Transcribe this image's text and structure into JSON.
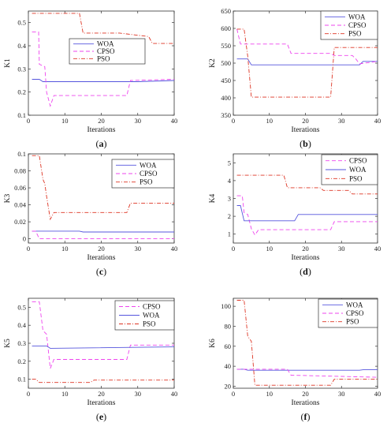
{
  "colors": {
    "WOA": "#5555dd",
    "CPSO": "#ee44ee",
    "PSO": "#dd3322"
  },
  "dash": {
    "WOA": "",
    "CPSO": "5,3",
    "PSO": "5,2,1,2"
  },
  "chart_data": [
    {
      "type": "line",
      "panel": "(a)",
      "sub_label_letter": "a",
      "xlabel": "Iterations",
      "ylabel": "K1",
      "xlim": [
        0,
        40
      ],
      "ylim": [
        0.1,
        0.55
      ],
      "xticks": [
        0,
        10,
        20,
        30,
        40
      ],
      "yticks": [
        0.1,
        0.2,
        0.3,
        0.4,
        0.5
      ],
      "legend_order": [
        "WOA",
        "CPSO",
        "PSO"
      ],
      "series": [
        {
          "name": "WOA",
          "x": [
            1,
            3,
            4,
            30,
            40
          ],
          "y": [
            0.255,
            0.255,
            0.245,
            0.245,
            0.25
          ]
        },
        {
          "name": "CPSO",
          "x": [
            1,
            2.8,
            3,
            4.5,
            5,
            6,
            7,
            27,
            28,
            40
          ],
          "y": [
            0.46,
            0.46,
            0.32,
            0.31,
            0.2,
            0.14,
            0.185,
            0.185,
            0.25,
            0.255
          ]
        },
        {
          "name": "PSO",
          "x": [
            1,
            14,
            15,
            25,
            33,
            34,
            40
          ],
          "y": [
            0.54,
            0.54,
            0.455,
            0.455,
            0.44,
            0.41,
            0.41
          ]
        }
      ]
    },
    {
      "type": "line",
      "panel": "(b)",
      "sub_label_letter": "b",
      "xlabel": "Iterations",
      "ylabel": "K2",
      "xlim": [
        0,
        40
      ],
      "ylim": [
        350,
        650
      ],
      "xticks": [
        0,
        10,
        20,
        30,
        40
      ],
      "yticks": [
        350,
        400,
        450,
        500,
        550,
        600,
        650
      ],
      "legend_order": [
        "WOA",
        "CPSO",
        "PSO"
      ],
      "series": [
        {
          "name": "WOA",
          "x": [
            1,
            4,
            5,
            35,
            36,
            40
          ],
          "y": [
            512,
            512,
            495,
            495,
            505,
            505
          ]
        },
        {
          "name": "CPSO",
          "x": [
            1,
            2,
            15,
            16,
            27,
            28,
            33,
            34,
            35,
            40
          ],
          "y": [
            598,
            555,
            555,
            528,
            528,
            522,
            522,
            512,
            498,
            505
          ]
        },
        {
          "name": "PSO",
          "x": [
            1,
            3,
            4,
            5,
            27,
            28,
            40
          ],
          "y": [
            598,
            598,
            520,
            402,
            402,
            545,
            545
          ]
        }
      ]
    },
    {
      "type": "line",
      "panel": "(c)",
      "sub_label_letter": "c",
      "xlabel": "Iterations",
      "ylabel": "K3",
      "xlim": [
        0,
        40
      ],
      "ylim": [
        -0.005,
        0.1
      ],
      "xticks": [
        0,
        10,
        20,
        30,
        40
      ],
      "yticks": [
        0,
        0.02,
        0.04,
        0.06,
        0.08,
        0.1
      ],
      "legend_order": [
        "WOA",
        "CPSO",
        "PSO"
      ],
      "series": [
        {
          "name": "WOA",
          "x": [
            1,
            14,
            15,
            40
          ],
          "y": [
            0.009,
            0.009,
            0.008,
            0.008
          ]
        },
        {
          "name": "CPSO",
          "x": [
            1,
            2,
            3,
            40
          ],
          "y": [
            0.009,
            0.009,
            0,
            0
          ]
        },
        {
          "name": "PSO",
          "x": [
            1,
            3,
            4,
            4.5,
            5,
            6,
            7,
            27,
            28,
            40
          ],
          "y": [
            0.098,
            0.098,
            0.07,
            0.065,
            0.05,
            0.023,
            0.031,
            0.031,
            0.042,
            0.042
          ]
        }
      ]
    },
    {
      "type": "line",
      "panel": "(d)",
      "sub_label_letter": "d",
      "xlabel": "Iterations",
      "ylabel": "K4",
      "xlim": [
        0,
        40
      ],
      "ylim": [
        0.5,
        5.5
      ],
      "xticks": [
        0,
        10,
        20,
        30,
        40
      ],
      "yticks": [
        1,
        2,
        3,
        4,
        5
      ],
      "legend_order": [
        "CPSO",
        "WOA",
        "PSO"
      ],
      "series": [
        {
          "name": "CPSO",
          "x": [
            1,
            2.5,
            3,
            4,
            5,
            6,
            7,
            27,
            28,
            40
          ],
          "y": [
            3.15,
            3.15,
            2.2,
            2.1,
            1.3,
            0.95,
            1.25,
            1.25,
            1.7,
            1.7
          ]
        },
        {
          "name": "WOA",
          "x": [
            1,
            2,
            3,
            17,
            18,
            40
          ],
          "y": [
            2.6,
            2.6,
            1.75,
            1.75,
            2.1,
            2.1
          ]
        },
        {
          "name": "PSO",
          "x": [
            1,
            14,
            15,
            24,
            25,
            32,
            33,
            40
          ],
          "y": [
            4.3,
            4.3,
            3.6,
            3.6,
            3.45,
            3.45,
            3.25,
            3.25
          ]
        }
      ]
    },
    {
      "type": "line",
      "panel": "(e)",
      "sub_label_letter": "e",
      "xlabel": "Iterations",
      "ylabel": "K5",
      "xlim": [
        0,
        40
      ],
      "ylim": [
        0.05,
        0.55
      ],
      "xticks": [
        0,
        10,
        20,
        30,
        40
      ],
      "yticks": [
        0.1,
        0.2,
        0.3,
        0.4,
        0.5
      ],
      "legend_order": [
        "CPSO",
        "WOA",
        "PSO"
      ],
      "series": [
        {
          "name": "CPSO",
          "x": [
            1,
            3,
            4,
            5,
            6,
            7,
            27,
            28,
            40
          ],
          "y": [
            0.53,
            0.53,
            0.37,
            0.35,
            0.16,
            0.21,
            0.21,
            0.29,
            0.29
          ]
        },
        {
          "name": "WOA",
          "x": [
            1,
            5,
            6,
            40
          ],
          "y": [
            0.285,
            0.285,
            0.272,
            0.28
          ]
        },
        {
          "name": "PSO",
          "x": [
            1,
            2,
            3,
            17,
            18,
            40
          ],
          "y": [
            0.1,
            0.1,
            0.082,
            0.082,
            0.095,
            0.095
          ]
        }
      ]
    },
    {
      "type": "line",
      "panel": "(f)",
      "sub_label_letter": "f",
      "xlabel": "Iterations",
      "ylabel": "K6",
      "xlim": [
        0,
        40
      ],
      "ylim": [
        18,
        108
      ],
      "xticks": [
        0,
        10,
        20,
        30,
        40
      ],
      "yticks": [
        20,
        40,
        60,
        80,
        100
      ],
      "legend_order": [
        "WOA",
        "CPSO",
        "PSO"
      ],
      "series": [
        {
          "name": "WOA",
          "x": [
            1,
            3,
            4,
            35,
            36,
            40
          ],
          "y": [
            37,
            37,
            36,
            36,
            36.5,
            36.5
          ]
        },
        {
          "name": "CPSO",
          "x": [
            1,
            2,
            15,
            16,
            40
          ],
          "y": [
            37,
            37,
            37,
            31,
            29
          ]
        },
        {
          "name": "PSO",
          "x": [
            1,
            3,
            4,
            5,
            6,
            27,
            28,
            40
          ],
          "y": [
            106,
            106,
            70,
            65,
            21,
            21,
            27,
            27
          ]
        }
      ]
    }
  ]
}
